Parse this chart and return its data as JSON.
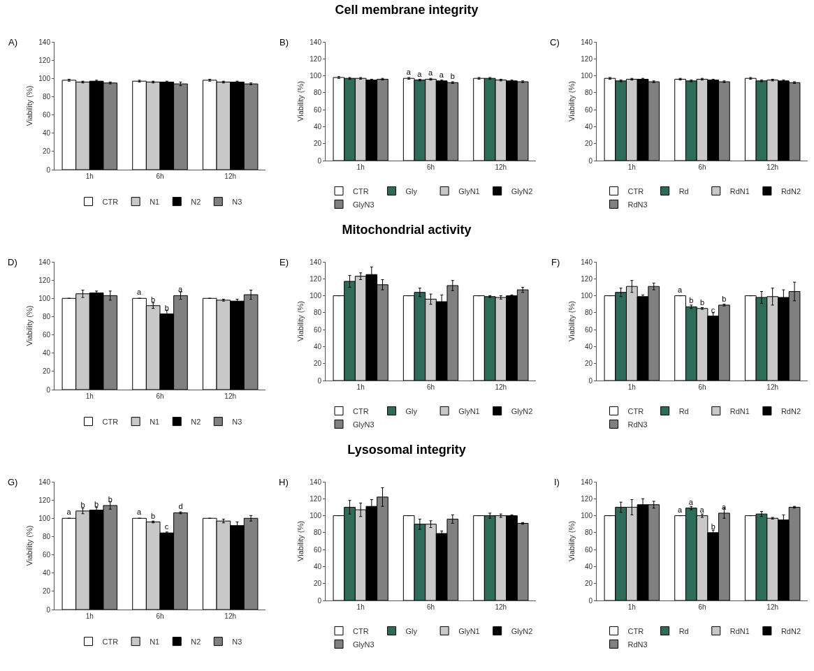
{
  "chart_data": [
    {
      "type": "bar",
      "annotations": [
        "A)"
      ],
      "ylabel": "Viability (%)",
      "categories": [
        "1h",
        "6h",
        "12h"
      ],
      "ylim": [
        0,
        140
      ],
      "yticks": [
        0,
        20,
        40,
        60,
        80,
        100,
        120,
        140
      ],
      "legend": "bottom",
      "series": [
        {
          "name": "CTR",
          "color": "#ffffff",
          "values": [
            98,
            97,
            98
          ],
          "errors": [
            1,
            1,
            1
          ]
        },
        {
          "name": "N1",
          "color": "#c8c8c8",
          "values": [
            96,
            96,
            96
          ],
          "errors": [
            1,
            1,
            1
          ]
        },
        {
          "name": "N2",
          "color": "#000000",
          "values": [
            97,
            96,
            96
          ],
          "errors": [
            1,
            1,
            1
          ]
        },
        {
          "name": "N3",
          "color": "#808080",
          "values": [
            95,
            94,
            94
          ],
          "errors": [
            1,
            2,
            1
          ]
        }
      ]
    },
    {
      "type": "bar",
      "title": "Cell membrane integrity",
      "annotations": [
        "B)"
      ],
      "ylabel": "Viability (%)",
      "categories": [
        "1h",
        "6h",
        "12h"
      ],
      "ylim": [
        0,
        140
      ],
      "yticks": [
        0,
        20,
        40,
        60,
        80,
        100,
        120,
        140
      ],
      "legend": "bottom",
      "series": [
        {
          "name": "CTR",
          "color": "#ffffff",
          "values": [
            98,
            97,
            97
          ],
          "errors": [
            1,
            1,
            1
          ],
          "value_labels": [
            null,
            "a",
            null
          ]
        },
        {
          "name": "Gly",
          "color": "#2e6b58",
          "values": [
            97,
            95,
            97
          ],
          "errors": [
            1,
            1,
            1
          ],
          "value_labels": [
            null,
            "a",
            null
          ]
        },
        {
          "name": "GlyN1",
          "color": "#c8c8c8",
          "values": [
            97,
            96,
            95
          ],
          "errors": [
            1,
            1,
            1
          ],
          "value_labels": [
            null,
            "a",
            null
          ]
        },
        {
          "name": "GlyN2",
          "color": "#000000",
          "values": [
            95,
            94,
            94
          ],
          "errors": [
            1,
            1,
            1
          ],
          "value_labels": [
            null,
            "a",
            null
          ]
        },
        {
          "name": "GlyN3",
          "color": "#808080",
          "values": [
            96,
            92,
            93
          ],
          "errors": [
            1,
            1,
            1
          ],
          "value_labels": [
            null,
            "b",
            null
          ]
        }
      ]
    },
    {
      "type": "bar",
      "annotations": [
        "C)"
      ],
      "ylabel": "Viability (%)",
      "categories": [
        "1h",
        "6h",
        "12h"
      ],
      "ylim": [
        0,
        140
      ],
      "yticks": [
        0,
        20,
        40,
        60,
        80,
        100,
        120,
        140
      ],
      "legend": "bottom",
      "series": [
        {
          "name": "CTR",
          "color": "#ffffff",
          "values": [
            97,
            96,
            97
          ],
          "errors": [
            1,
            1,
            1
          ]
        },
        {
          "name": "Rd",
          "color": "#2e6b58",
          "values": [
            94,
            94,
            94
          ],
          "errors": [
            1,
            1,
            1
          ]
        },
        {
          "name": "RdN1",
          "color": "#c8c8c8",
          "values": [
            96,
            96,
            95
          ],
          "errors": [
            1,
            1,
            1
          ]
        },
        {
          "name": "RdN2",
          "color": "#000000",
          "values": [
            96,
            95,
            94
          ],
          "errors": [
            1,
            1,
            1
          ]
        },
        {
          "name": "RdN3",
          "color": "#808080",
          "values": [
            93,
            93,
            92
          ],
          "errors": [
            1,
            1,
            1
          ]
        }
      ]
    },
    {
      "type": "bar",
      "annotations": [
        "D)"
      ],
      "ylabel": "Viability (%)",
      "categories": [
        "1h",
        "6h",
        "12h"
      ],
      "ylim": [
        0,
        140
      ],
      "yticks": [
        0,
        20,
        40,
        60,
        80,
        100,
        120,
        140
      ],
      "legend": "bottom",
      "series": [
        {
          "name": "CTR",
          "color": "#ffffff",
          "values": [
            100,
            100,
            100
          ],
          "errors": [
            0,
            0,
            0
          ],
          "value_labels": [
            null,
            "a",
            null
          ]
        },
        {
          "name": "N1",
          "color": "#c8c8c8",
          "values": [
            105,
            92,
            98
          ],
          "errors": [
            4,
            3,
            1
          ],
          "value_labels": [
            null,
            "b",
            null
          ]
        },
        {
          "name": "N2",
          "color": "#000000",
          "values": [
            106,
            83,
            97
          ],
          "errors": [
            2,
            4,
            2
          ],
          "value_labels": [
            null,
            "b",
            null
          ]
        },
        {
          "name": "N3",
          "color": "#808080",
          "values": [
            103,
            103,
            104
          ],
          "errors": [
            5,
            4,
            5
          ],
          "value_labels": [
            null,
            "a",
            null
          ]
        }
      ]
    },
    {
      "type": "bar",
      "title": "Mitochondrial activity",
      "annotations": [
        "E)"
      ],
      "ylabel": "Viability (%)",
      "categories": [
        "1h",
        "6h",
        "12h"
      ],
      "ylim": [
        0,
        140
      ],
      "yticks": [
        0,
        20,
        40,
        60,
        80,
        100,
        120,
        140
      ],
      "legend": "bottom",
      "series": [
        {
          "name": "CTR",
          "color": "#ffffff",
          "values": [
            100,
            100,
            100
          ],
          "errors": [
            0,
            0,
            0
          ]
        },
        {
          "name": "Gly",
          "color": "#2e6b58",
          "values": [
            117,
            104,
            99
          ],
          "errors": [
            7,
            5,
            1
          ]
        },
        {
          "name": "GlyN1",
          "color": "#c8c8c8",
          "values": [
            123,
            96,
            98
          ],
          "errors": [
            4,
            6,
            2
          ]
        },
        {
          "name": "GlyN2",
          "color": "#000000",
          "values": [
            125,
            93,
            100
          ],
          "errors": [
            9,
            8,
            1
          ]
        },
        {
          "name": "GlyN3",
          "color": "#808080",
          "values": [
            113,
            112,
            107
          ],
          "errors": [
            6,
            6,
            3
          ]
        }
      ]
    },
    {
      "type": "bar",
      "annotations": [
        "F)"
      ],
      "ylabel": "Viability (%)",
      "categories": [
        "1h",
        "6h",
        "12h"
      ],
      "ylim": [
        0,
        140
      ],
      "yticks": [
        0,
        20,
        40,
        60,
        80,
        100,
        120,
        140
      ],
      "legend": "bottom",
      "series": [
        {
          "name": "CTR",
          "color": "#ffffff",
          "values": [
            100,
            100,
            100
          ],
          "errors": [
            0,
            0,
            0
          ],
          "value_labels": [
            null,
            "a",
            null
          ]
        },
        {
          "name": "Rd",
          "color": "#2e6b58",
          "values": [
            104,
            87,
            98
          ],
          "errors": [
            5,
            2,
            7
          ],
          "value_labels": [
            null,
            "b",
            null
          ]
        },
        {
          "name": "RdN1",
          "color": "#c8c8c8",
          "values": [
            111,
            85,
            99
          ],
          "errors": [
            7,
            1,
            10
          ],
          "value_labels": [
            null,
            "b",
            null
          ]
        },
        {
          "name": "RdN2",
          "color": "#000000",
          "values": [
            99,
            76,
            98
          ],
          "errors": [
            2,
            4,
            9
          ],
          "value_labels": [
            null,
            "c",
            null
          ]
        },
        {
          "name": "RdN3",
          "color": "#808080",
          "values": [
            111,
            89,
            105
          ],
          "errors": [
            4,
            1,
            11
          ],
          "value_labels": [
            null,
            "b",
            null
          ]
        }
      ]
    },
    {
      "type": "bar",
      "annotations": [
        "G)"
      ],
      "ylabel": "Viability (%)",
      "categories": [
        "1h",
        "6h",
        "12h"
      ],
      "ylim": [
        0,
        140
      ],
      "yticks": [
        0,
        20,
        40,
        60,
        80,
        100,
        120,
        140
      ],
      "legend": "bottom",
      "series": [
        {
          "name": "CTR",
          "color": "#ffffff",
          "values": [
            100,
            100,
            100
          ],
          "errors": [
            0,
            0,
            0
          ],
          "value_labels": [
            "a",
            "a",
            null
          ]
        },
        {
          "name": "N1",
          "color": "#c8c8c8",
          "values": [
            108,
            96,
            97
          ],
          "errors": [
            3,
            1,
            2
          ],
          "value_labels": [
            "b",
            "b",
            null
          ]
        },
        {
          "name": "N2",
          "color": "#000000",
          "values": [
            109,
            84,
            92
          ],
          "errors": [
            3,
            1,
            4
          ],
          "value_labels": [
            "b",
            "c",
            null
          ]
        },
        {
          "name": "N3",
          "color": "#808080",
          "values": [
            114,
            106,
            100
          ],
          "errors": [
            4,
            1,
            3
          ],
          "value_labels": [
            "b",
            "d",
            null
          ]
        }
      ]
    },
    {
      "type": "bar",
      "title": "Lysosomal integrity",
      "annotations": [
        "H)"
      ],
      "ylabel": "Viability (%)",
      "categories": [
        "1h",
        "6h",
        "12h"
      ],
      "ylim": [
        0,
        140
      ],
      "yticks": [
        0,
        20,
        40,
        60,
        80,
        100,
        120,
        140
      ],
      "legend": "bottom",
      "series": [
        {
          "name": "CTR",
          "color": "#ffffff",
          "values": [
            100,
            100,
            100
          ],
          "errors": [
            0,
            0,
            0
          ]
        },
        {
          "name": "Gly",
          "color": "#2e6b58",
          "values": [
            110,
            90,
            100
          ],
          "errors": [
            8,
            6,
            3
          ]
        },
        {
          "name": "GlyN1",
          "color": "#c8c8c8",
          "values": [
            107,
            90,
            100
          ],
          "errors": [
            8,
            4,
            2
          ]
        },
        {
          "name": "GlyN2",
          "color": "#000000",
          "values": [
            111,
            79,
            100
          ],
          "errors": [
            8,
            3,
            1
          ]
        },
        {
          "name": "GlyN3",
          "color": "#808080",
          "values": [
            122,
            96,
            91
          ],
          "errors": [
            11,
            5,
            1
          ]
        }
      ]
    },
    {
      "type": "bar",
      "annotations": [
        "I)"
      ],
      "ylabel": "Viability (%)",
      "categories": [
        "1h",
        "6h",
        "12h"
      ],
      "ylim": [
        0,
        140
      ],
      "yticks": [
        0,
        20,
        40,
        60,
        80,
        100,
        120,
        140
      ],
      "legend": "bottom",
      "series": [
        {
          "name": "CTR",
          "color": "#ffffff",
          "values": [
            100,
            100,
            100
          ],
          "errors": [
            0,
            0,
            0
          ],
          "value_labels": [
            null,
            "a",
            null
          ]
        },
        {
          "name": "Rd",
          "color": "#2e6b58",
          "values": [
            110,
            109,
            102
          ],
          "errors": [
            6,
            2,
            3
          ],
          "value_labels": [
            null,
            "a",
            null
          ]
        },
        {
          "name": "RdN1",
          "color": "#c8c8c8",
          "values": [
            110,
            100,
            97
          ],
          "errors": [
            9,
            2,
            1
          ],
          "value_labels": [
            null,
            "a",
            null
          ]
        },
        {
          "name": "RdN2",
          "color": "#000000",
          "values": [
            113,
            80,
            95
          ],
          "errors": [
            7,
            3,
            6
          ],
          "value_labels": [
            null,
            "b",
            null
          ]
        },
        {
          "name": "RdN3",
          "color": "#808080",
          "values": [
            113,
            103,
            110
          ],
          "errors": [
            4,
            6,
            1
          ],
          "value_labels": [
            null,
            "a",
            null
          ]
        }
      ]
    }
  ]
}
